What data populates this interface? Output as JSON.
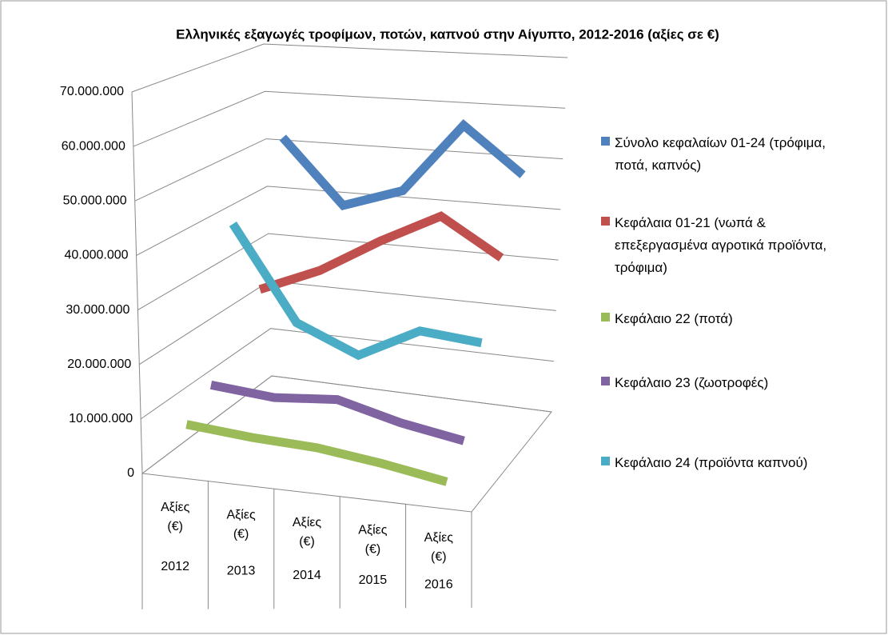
{
  "chart_data": {
    "type": "line3d",
    "title": "Ελληνικές εξαγωγές τροφίμων, ποτών, καπνού στην Αίγυπτο, 2012-2016 (αξίες σε €)",
    "categories": [
      "Αξίες (€)",
      "Αξίες (€)",
      "Αξίες (€)",
      "Αξίες (€)",
      "Αξίες (€)"
    ],
    "category_groups": [
      "2012",
      "2013",
      "2014",
      "2015",
      "2016"
    ],
    "ylim": [
      0,
      70000000
    ],
    "yticks": [
      {
        "value": 0,
        "label": "0"
      },
      {
        "value": 10000000,
        "label": "10.000.000"
      },
      {
        "value": 20000000,
        "label": "20.000.000"
      },
      {
        "value": 30000000,
        "label": "30.000.000"
      },
      {
        "value": 40000000,
        "label": "40.000.000"
      },
      {
        "value": 50000000,
        "label": "50.000.000"
      },
      {
        "value": 60000000,
        "label": "60.000.000"
      },
      {
        "value": 70000000,
        "label": "70.000.000"
      }
    ],
    "grid": true,
    "legend": "right",
    "series": [
      {
        "name": "Σύνολο κεφαλαίων 01-24 (τρόφιμα, ποτά, καπνός)",
        "color": "#4f81bd",
        "values": [
          52000000,
          39000000,
          43000000,
          57000000,
          48000000
        ]
      },
      {
        "name": "Κεφάλαια 01-21 (νωπά & επεξεργασμένα αγροτικά προϊόντα, τρόφιμα)",
        "color": "#c0504d",
        "values": [
          24000000,
          29000000,
          36000000,
          42000000,
          35000000
        ]
      },
      {
        "name": "Κεφάλαιο 22 (ποτά)",
        "color": "#9bbb59",
        "values": [
          8000000,
          7000000,
          6500000,
          5000000,
          3000000
        ]
      },
      {
        "name": "Κεφάλαιο 23 (ζωοτροφές)",
        "color": "#8064a2",
        "values": [
          12000000,
          11000000,
          12000000,
          9000000,
          7000000
        ]
      },
      {
        "name": "Κεφάλαιο 24 (προϊόντα καπνού)",
        "color": "#4bacc6",
        "values": [
          40000000,
          22000000,
          17000000,
          23000000,
          22000000
        ]
      }
    ]
  }
}
